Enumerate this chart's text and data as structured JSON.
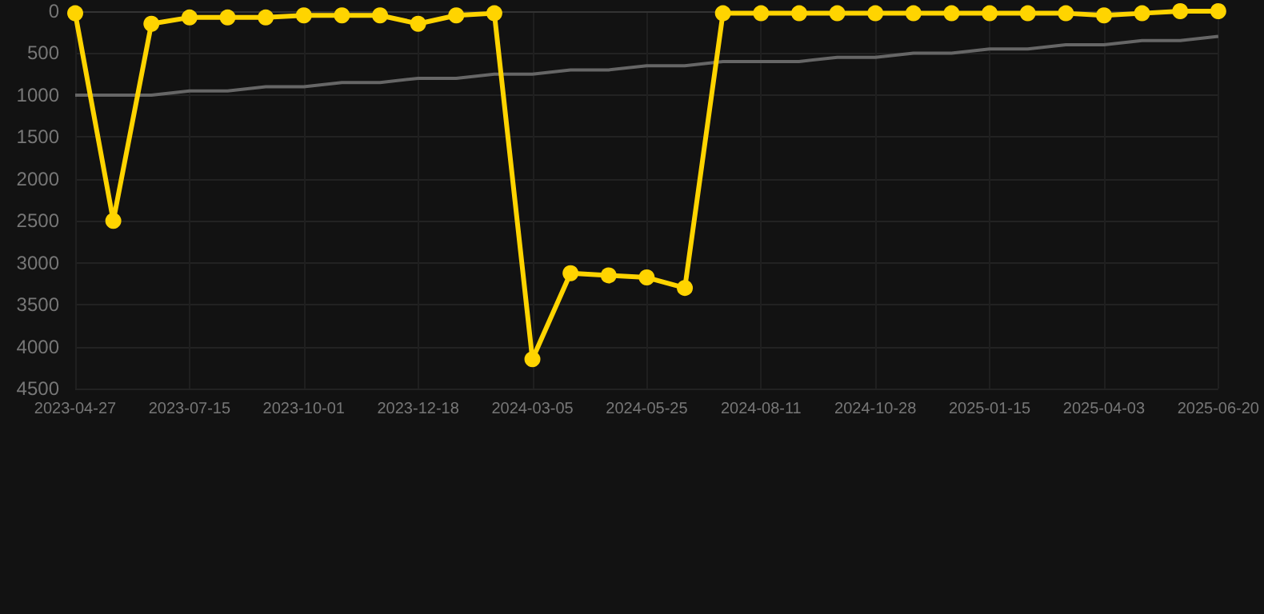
{
  "chart_data": {
    "type": "line",
    "categories": [
      "2023-04-27",
      null,
      null,
      "2023-07-15",
      null,
      null,
      "2023-10-01",
      null,
      null,
      "2023-12-18",
      null,
      null,
      "2024-03-05",
      null,
      null,
      "2024-05-25",
      null,
      null,
      "2024-08-11",
      null,
      null,
      "2024-10-28",
      null,
      null,
      "2025-01-15",
      null,
      null,
      "2025-04-03",
      null,
      null,
      "2025-06-20"
    ],
    "series": [
      {
        "color": "#ffd400",
        "marker": "circle",
        "values": [
          25,
          2500,
          150,
          75,
          75,
          75,
          50,
          50,
          50,
          150,
          50,
          25,
          4150,
          3125,
          3150,
          3175,
          3300,
          25,
          25,
          25,
          25,
          25,
          25,
          25,
          25,
          25,
          25,
          50,
          25,
          0,
          0
        ]
      },
      {
        "type": "line",
        "color": "#666666",
        "marker": "none",
        "values": [
          1000,
          1000,
          1000,
          950,
          950,
          900,
          900,
          850,
          850,
          800,
          800,
          750,
          750,
          700,
          700,
          650,
          650,
          600,
          600,
          600,
          550,
          550,
          500,
          500,
          450,
          450,
          400,
          400,
          350,
          350,
          300
        ]
      }
    ],
    "ylim": [
      4500,
      0
    ],
    "yticks": [
      0,
      500,
      1000,
      1500,
      2000,
      2500,
      3000,
      3500,
      4000,
      4500
    ],
    "grid": true
  }
}
